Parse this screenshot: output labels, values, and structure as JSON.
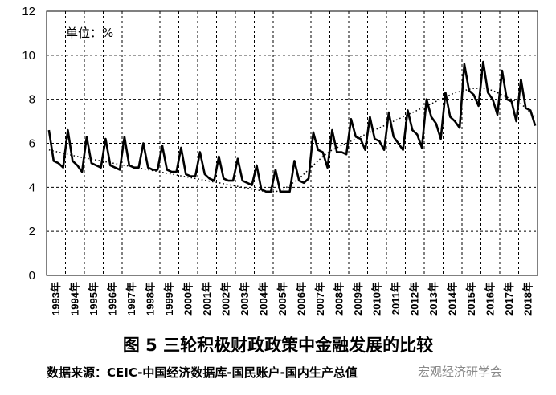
{
  "chart_data": {
    "type": "line",
    "unit_label": "单位：%",
    "ylim": [
      0,
      12
    ],
    "yticks": [
      "0",
      "2",
      "4",
      "6",
      "8",
      "10",
      "12"
    ],
    "grid": true,
    "x_labels": [
      "1993年",
      "1994年",
      "1995年",
      "1996年",
      "1997年",
      "1998年",
      "1999年",
      "2000年",
      "2001年",
      "2002年",
      "2003年",
      "2004年",
      "2005年",
      "2006年",
      "2007年",
      "2008年",
      "2009年",
      "2010年",
      "2011年",
      "2012年",
      "2013年",
      "2014年",
      "2015年",
      "2016年",
      "2017年",
      "2018年"
    ],
    "series": [
      {
        "style": "solid",
        "frequency": "quarterly",
        "start": "1993Q1",
        "values": [
          6.6,
          5.2,
          5.1,
          4.9,
          6.6,
          5.2,
          5.0,
          4.7,
          6.3,
          5.1,
          5.0,
          4.9,
          6.2,
          5.0,
          4.9,
          4.8,
          6.3,
          5.0,
          4.9,
          4.9,
          6.0,
          4.9,
          4.8,
          4.8,
          5.9,
          4.8,
          4.7,
          4.7,
          5.8,
          4.6,
          4.5,
          4.5,
          5.6,
          4.6,
          4.4,
          4.3,
          5.4,
          4.4,
          4.3,
          4.3,
          5.3,
          4.3,
          4.2,
          4.1,
          5.0,
          3.9,
          3.8,
          3.8,
          4.8,
          3.8,
          3.8,
          3.8,
          5.2,
          4.3,
          4.2,
          4.4,
          6.5,
          5.7,
          5.6,
          4.9,
          6.6,
          5.6,
          5.6,
          5.5,
          7.1,
          6.3,
          6.2,
          5.7,
          7.2,
          6.2,
          6.1,
          5.7,
          7.4,
          6.3,
          6.0,
          5.7,
          7.5,
          6.6,
          6.4,
          5.8,
          8.0,
          7.2,
          6.9,
          6.2,
          8.3,
          7.2,
          7.0,
          6.7,
          9.6,
          8.4,
          8.2,
          7.7,
          9.7,
          8.3,
          8.0,
          7.3,
          9.3,
          8.0,
          7.9,
          7.0,
          8.9,
          7.6,
          7.5,
          6.8
        ]
      },
      {
        "style": "dotted",
        "frequency": "quarterly",
        "start": "1993Q1",
        "values": [
          5.7,
          5.65,
          5.6,
          5.55,
          5.5,
          5.45,
          5.4,
          5.36,
          5.32,
          5.28,
          5.24,
          5.2,
          5.16,
          5.12,
          5.08,
          5.04,
          5.0,
          4.96,
          4.92,
          4.88,
          4.84,
          4.8,
          4.76,
          4.72,
          4.68,
          4.64,
          4.6,
          4.56,
          4.52,
          4.48,
          4.44,
          4.4,
          4.36,
          4.32,
          4.28,
          4.24,
          4.2,
          4.16,
          4.12,
          4.08,
          4.04,
          4.0,
          3.96,
          3.92,
          3.88,
          3.84,
          3.8,
          3.8,
          3.8,
          3.85,
          3.95,
          4.1,
          4.25,
          4.4,
          4.6,
          4.8,
          5.0,
          5.2,
          5.4,
          5.55,
          5.7,
          5.8,
          5.9,
          6.0,
          6.1,
          6.2,
          6.3,
          6.4,
          6.5,
          6.6,
          6.7,
          6.8,
          6.9,
          7.0,
          7.1,
          7.2,
          7.3,
          7.4,
          7.5,
          7.6,
          7.7,
          7.8,
          7.9,
          8.0,
          8.1,
          8.2,
          8.3,
          8.35,
          8.4,
          8.45,
          8.5,
          8.5,
          8.5,
          8.45,
          8.4,
          8.3,
          8.2,
          8.1,
          8.0,
          7.9,
          7.8,
          7.6,
          7.4,
          7.2
        ]
      }
    ]
  },
  "caption": "图 5  三轮积极财政政策中金融发展的比较",
  "source": "数据来源：CEIC-中国经济数据库-国民账户-国内生产总值",
  "watermark": "宏观经济研学会"
}
